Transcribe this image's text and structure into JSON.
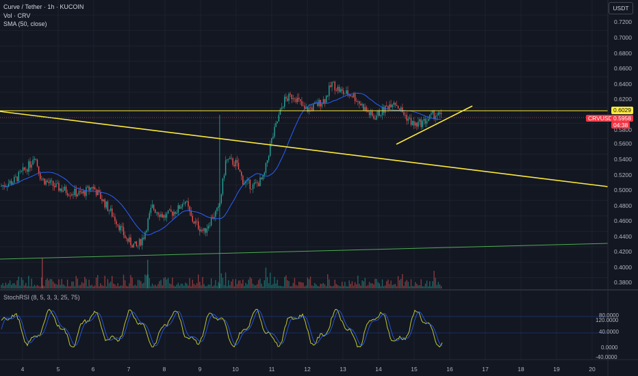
{
  "header": {
    "title": "Curve / Tether · 1h · KUCOIN",
    "volume_label": "Vol · CRV",
    "sma_label": "SMA (50, close)",
    "currency": "USDT"
  },
  "price_axis": {
    "labels": [
      "0.7200",
      "0.7000",
      "0.6800",
      "0.6600",
      "0.6400",
      "0.6200",
      "0.5800",
      "0.5600",
      "0.5400",
      "0.5200",
      "0.5000",
      "0.4800",
      "0.4600",
      "0.4400",
      "0.4200",
      "0.4000",
      "0.3800"
    ]
  },
  "tags": {
    "level": "0.6029",
    "price": "0.5958",
    "timer": "04:38",
    "symbol": "CRVUSDT"
  },
  "stoch": {
    "label": "StochRSI (8, 5, 3, 3, 25, 75)",
    "axis": [
      "120.0000",
      "80.0000",
      "40.0000",
      "0.0000",
      "-40.0000"
    ]
  },
  "time_axis": {
    "labels": [
      "4",
      "5",
      "6",
      "7",
      "8",
      "9",
      "10",
      "11",
      "12",
      "13",
      "14",
      "15",
      "16",
      "17",
      "18",
      "19",
      "20"
    ]
  },
  "colors": {
    "background": "#131722",
    "up": "#26a69a",
    "down": "#ef5350",
    "sma": "#2962ff",
    "trendline": "#ffeb3b",
    "support": "#4caf50",
    "stoch_k": "#c0ca33",
    "stoch_d": "#2962ff"
  }
}
